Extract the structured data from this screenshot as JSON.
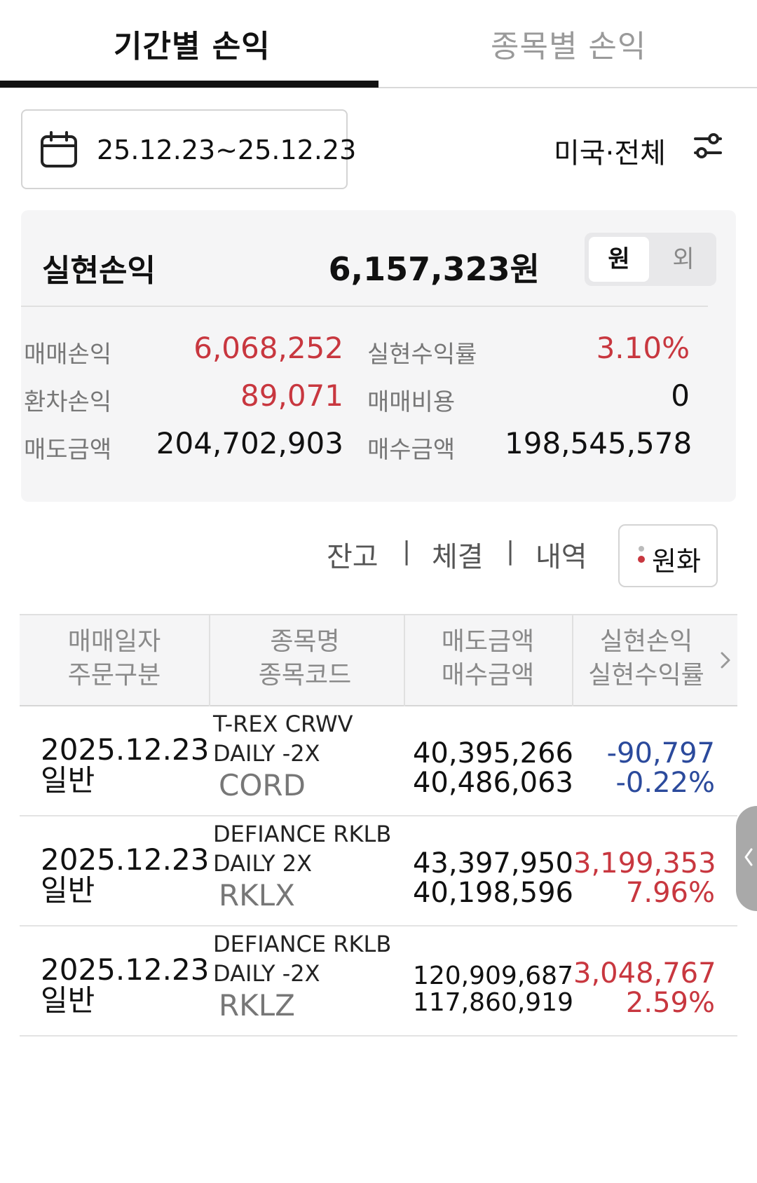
{
  "tabs": {
    "period_label": "기간별 손익",
    "stock_label": "종목별 손익"
  },
  "filter": {
    "date_range": "25.12.23~25.12.23",
    "market": "미국·전체"
  },
  "summary": {
    "title": "실현손익",
    "total": "6,157,323원",
    "currency_won": "원",
    "currency_foreign": "외",
    "trade_pl_label": "매매손익",
    "trade_pl_value": "6,068,252",
    "return_rate_label": "실현수익률",
    "return_rate_value": "3.10%",
    "fx_pl_label": "환차손익",
    "fx_pl_value": "89,071",
    "trade_cost_label": "매매비용",
    "trade_cost_value": "0",
    "sell_amount_label": "매도금액",
    "sell_amount_value": "204,702,903",
    "buy_amount_label": "매수금액",
    "buy_amount_value": "198,545,578"
  },
  "links": {
    "balance": "잔고",
    "executed": "체결",
    "history": "내역",
    "sep": "|",
    "won_button": "원화"
  },
  "table": {
    "headers": [
      {
        "line1": "매매일자",
        "line2": "주문구분"
      },
      {
        "line1": "종목명",
        "line2": "종목코드"
      },
      {
        "line1": "매도금액",
        "line2": "매수금액"
      },
      {
        "line1": "실현손익",
        "line2": "실현수익률"
      }
    ],
    "rows": [
      {
        "date": "2025.12.23",
        "type": "일반",
        "name1": "T-REX CRWV",
        "name2": "DAILY -2X",
        "code": "CORD",
        "sell": "40,395,266",
        "buy": "40,486,063",
        "pl": "-90,797",
        "rate": "-0.22%"
      },
      {
        "date": "2025.12.23",
        "type": "일반",
        "name1": "DEFIANCE RKLB",
        "name2": "DAILY 2X",
        "code": "RKLX",
        "sell": "43,397,950",
        "buy": "40,198,596",
        "pl": "3,199,353",
        "rate": "7.96%"
      },
      {
        "date": "2025.12.23",
        "type": "일반",
        "name1": "DEFIANCE RKLB",
        "name2": "DAILY -2X",
        "code": "RKLZ",
        "sell": "120,909,687",
        "buy": "117,860,919",
        "pl": "3,048,767",
        "rate": "2.59%"
      }
    ]
  },
  "colors": {
    "profit": "#c8373f",
    "loss": "#2b4a9c"
  }
}
